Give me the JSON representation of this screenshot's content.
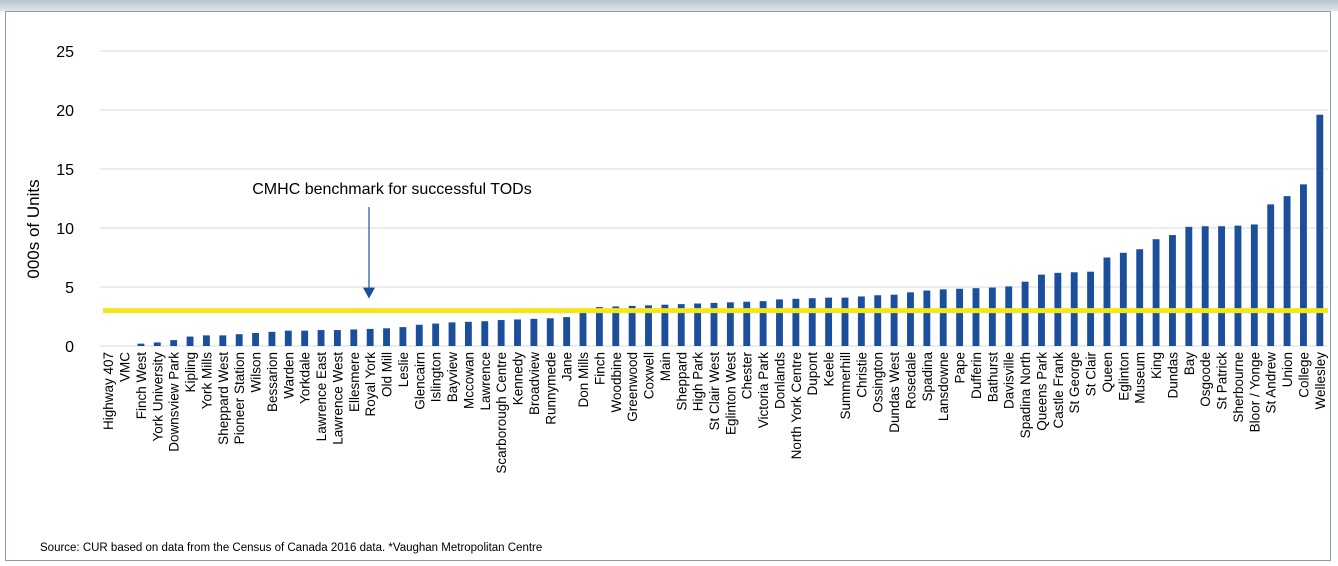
{
  "chart_data": {
    "type": "bar",
    "ylabel": "000s of Units",
    "ylim": [
      0,
      25
    ],
    "yticks": [
      "0",
      "5",
      "10",
      "15",
      "20",
      "25"
    ],
    "grid": true,
    "bar_color": "#1b4f9c",
    "benchmark": {
      "value": 3.0,
      "label": "CMHC benchmark for successful TODs",
      "color": "#f5e61a",
      "arrow_color": "#1b4f9c"
    },
    "categories": [
      "Highway 407",
      "VMC",
      "Finch West",
      "York University",
      "Downsview Park",
      "Kipling",
      "York Mills",
      "Sheppard West",
      "Pioneer Station",
      "Wilson",
      "Bessarion",
      "Warden",
      "Yorkdale",
      "Lawrence East",
      "Lawrence West",
      "Ellesmere",
      "Royal York",
      "Old Mill",
      "Leslie",
      "Glencairn",
      "Islington",
      "Bayview",
      "Mccowan",
      "Lawrence",
      "Scarborough Centre",
      "Kennedy",
      "Broadview",
      "Runnymede",
      "Jane",
      "Don Mills",
      "Finch",
      "Woodbine",
      "Greenwood",
      "Coxwell",
      "Main",
      "Sheppard",
      "High Park",
      "St Clair West",
      "Eglinton West",
      "Chester",
      "Victoria Park",
      "Donlands",
      "North York Centre",
      "Dupont",
      "Keele",
      "Summerhill",
      "Christie",
      "Ossington",
      "Dundas West",
      "Rosedale",
      "Spadina",
      "Lansdowne",
      "Pape",
      "Dufferin",
      "Bathurst",
      "Davisville",
      "Spadina North",
      "Queens Park",
      "Castle Frank",
      "St George",
      "St Clair",
      "Queen",
      "Eglinton",
      "Museum",
      "King",
      "Dundas",
      "Bay",
      "Osgoode",
      "St Patrick",
      "Sherbourne",
      "Bloor / Yonge",
      "St Andrew",
      "Union",
      "College",
      "Wellesley"
    ],
    "values": [
      0,
      0,
      0.2,
      0.3,
      0.5,
      0.8,
      0.9,
      0.9,
      1.0,
      1.1,
      1.2,
      1.3,
      1.3,
      1.35,
      1.35,
      1.4,
      1.45,
      1.5,
      1.6,
      1.8,
      1.9,
      2.0,
      2.05,
      2.1,
      2.2,
      2.25,
      2.3,
      2.35,
      2.45,
      2.9,
      3.3,
      3.35,
      3.4,
      3.45,
      3.5,
      3.55,
      3.6,
      3.65,
      3.7,
      3.75,
      3.8,
      3.95,
      4.0,
      4.05,
      4.1,
      4.1,
      4.2,
      4.3,
      4.35,
      4.55,
      4.7,
      4.8,
      4.85,
      4.9,
      4.95,
      5.05,
      5.45,
      6.05,
      6.2,
      6.25,
      6.3,
      7.5,
      7.9,
      8.2,
      9.05,
      9.4,
      10.1,
      10.15,
      10.15,
      10.2,
      10.3,
      12.0,
      12.7,
      13.7,
      19.6
    ]
  },
  "source_note": "Source: CUR based on data from the Census of Canada 2016 data. *Vaughan Metropolitan Centre"
}
